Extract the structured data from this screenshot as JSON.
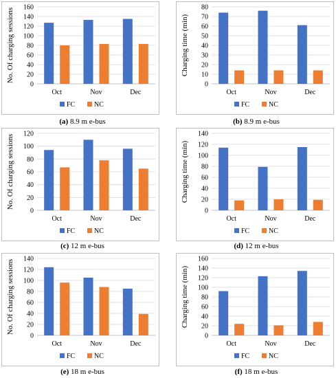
{
  "legend_labels": [
    "FC",
    "NC"
  ],
  "colors": {
    "FC": "#4472C4",
    "NC": "#ED7D31",
    "frame": "#bfbfbf",
    "grid": "#d9d9d9"
  },
  "chart_data": [
    {
      "type": "bar",
      "id": "a",
      "caption_letter": "(a)",
      "caption_text": "8.9 m e-bus",
      "categories": [
        "Oct",
        "Nov",
        "Dec"
      ],
      "series": [
        {
          "name": "FC",
          "values": [
            127,
            133,
            135
          ]
        },
        {
          "name": "NC",
          "values": [
            80,
            83,
            83
          ]
        }
      ],
      "ylabel": "No. Of charging sessions",
      "ylim": [
        0,
        160
      ],
      "yticks": [
        0,
        20,
        40,
        60,
        80,
        100,
        120,
        140,
        160
      ],
      "legend": "bottom"
    },
    {
      "type": "bar",
      "id": "b",
      "caption_letter": "(b)",
      "caption_text": "8.9 m e-bus",
      "categories": [
        "Oct",
        "Nov",
        "Dec"
      ],
      "series": [
        {
          "name": "FC",
          "values": [
            74,
            76,
            61
          ]
        },
        {
          "name": "NC",
          "values": [
            14,
            14,
            14
          ]
        }
      ],
      "ylabel": "Charging time (min)",
      "ylim": [
        0,
        80
      ],
      "yticks": [
        0,
        10,
        20,
        30,
        40,
        50,
        60,
        70,
        80
      ],
      "legend": "bottom"
    },
    {
      "type": "bar",
      "id": "c",
      "caption_letter": "(c)",
      "caption_text": "12 m e-bus",
      "categories": [
        "Oct",
        "Nov",
        "Dec"
      ],
      "series": [
        {
          "name": "FC",
          "values": [
            94,
            110,
            96
          ]
        },
        {
          "name": "NC",
          "values": [
            67,
            78,
            65
          ]
        }
      ],
      "ylabel": "No. Of charging sessions",
      "ylim": [
        0,
        120
      ],
      "yticks": [
        0,
        20,
        40,
        60,
        80,
        100,
        120
      ],
      "legend": "bottom"
    },
    {
      "type": "bar",
      "id": "d",
      "caption_letter": "(d)",
      "caption_text": "12 m e-bus",
      "categories": [
        "Oct",
        "Nov",
        "Dec"
      ],
      "series": [
        {
          "name": "FC",
          "values": [
            114,
            79,
            115
          ]
        },
        {
          "name": "NC",
          "values": [
            18,
            20,
            19
          ]
        }
      ],
      "ylabel": "Charging time (min)",
      "ylim": [
        0,
        140
      ],
      "yticks": [
        0,
        20,
        40,
        60,
        80,
        100,
        120,
        140
      ],
      "legend": "bottom"
    },
    {
      "type": "bar",
      "id": "e",
      "caption_letter": "(e)",
      "caption_text": "18 m e-bus",
      "categories": [
        "Oct",
        "Nov",
        "Dec"
      ],
      "series": [
        {
          "name": "FC",
          "values": [
            124,
            105,
            85
          ]
        },
        {
          "name": "NC",
          "values": [
            96,
            88,
            39
          ]
        }
      ],
      "ylabel": "No. Of charging sessions",
      "ylim": [
        0,
        140
      ],
      "yticks": [
        0,
        20,
        40,
        60,
        80,
        100,
        120,
        140
      ],
      "legend": "bottom"
    },
    {
      "type": "bar",
      "id": "f",
      "caption_letter": "(f)",
      "caption_text": "18 m e-bus",
      "categories": [
        "Oct",
        "Nov",
        "Dec"
      ],
      "series": [
        {
          "name": "FC",
          "values": [
            92,
            123,
            134
          ]
        },
        {
          "name": "NC",
          "values": [
            24,
            21,
            28
          ]
        }
      ],
      "ylabel": "Charging time (min)",
      "ylim": [
        0,
        160
      ],
      "yticks": [
        0,
        20,
        40,
        60,
        80,
        100,
        120,
        140,
        160
      ],
      "legend": "bottom"
    }
  ]
}
